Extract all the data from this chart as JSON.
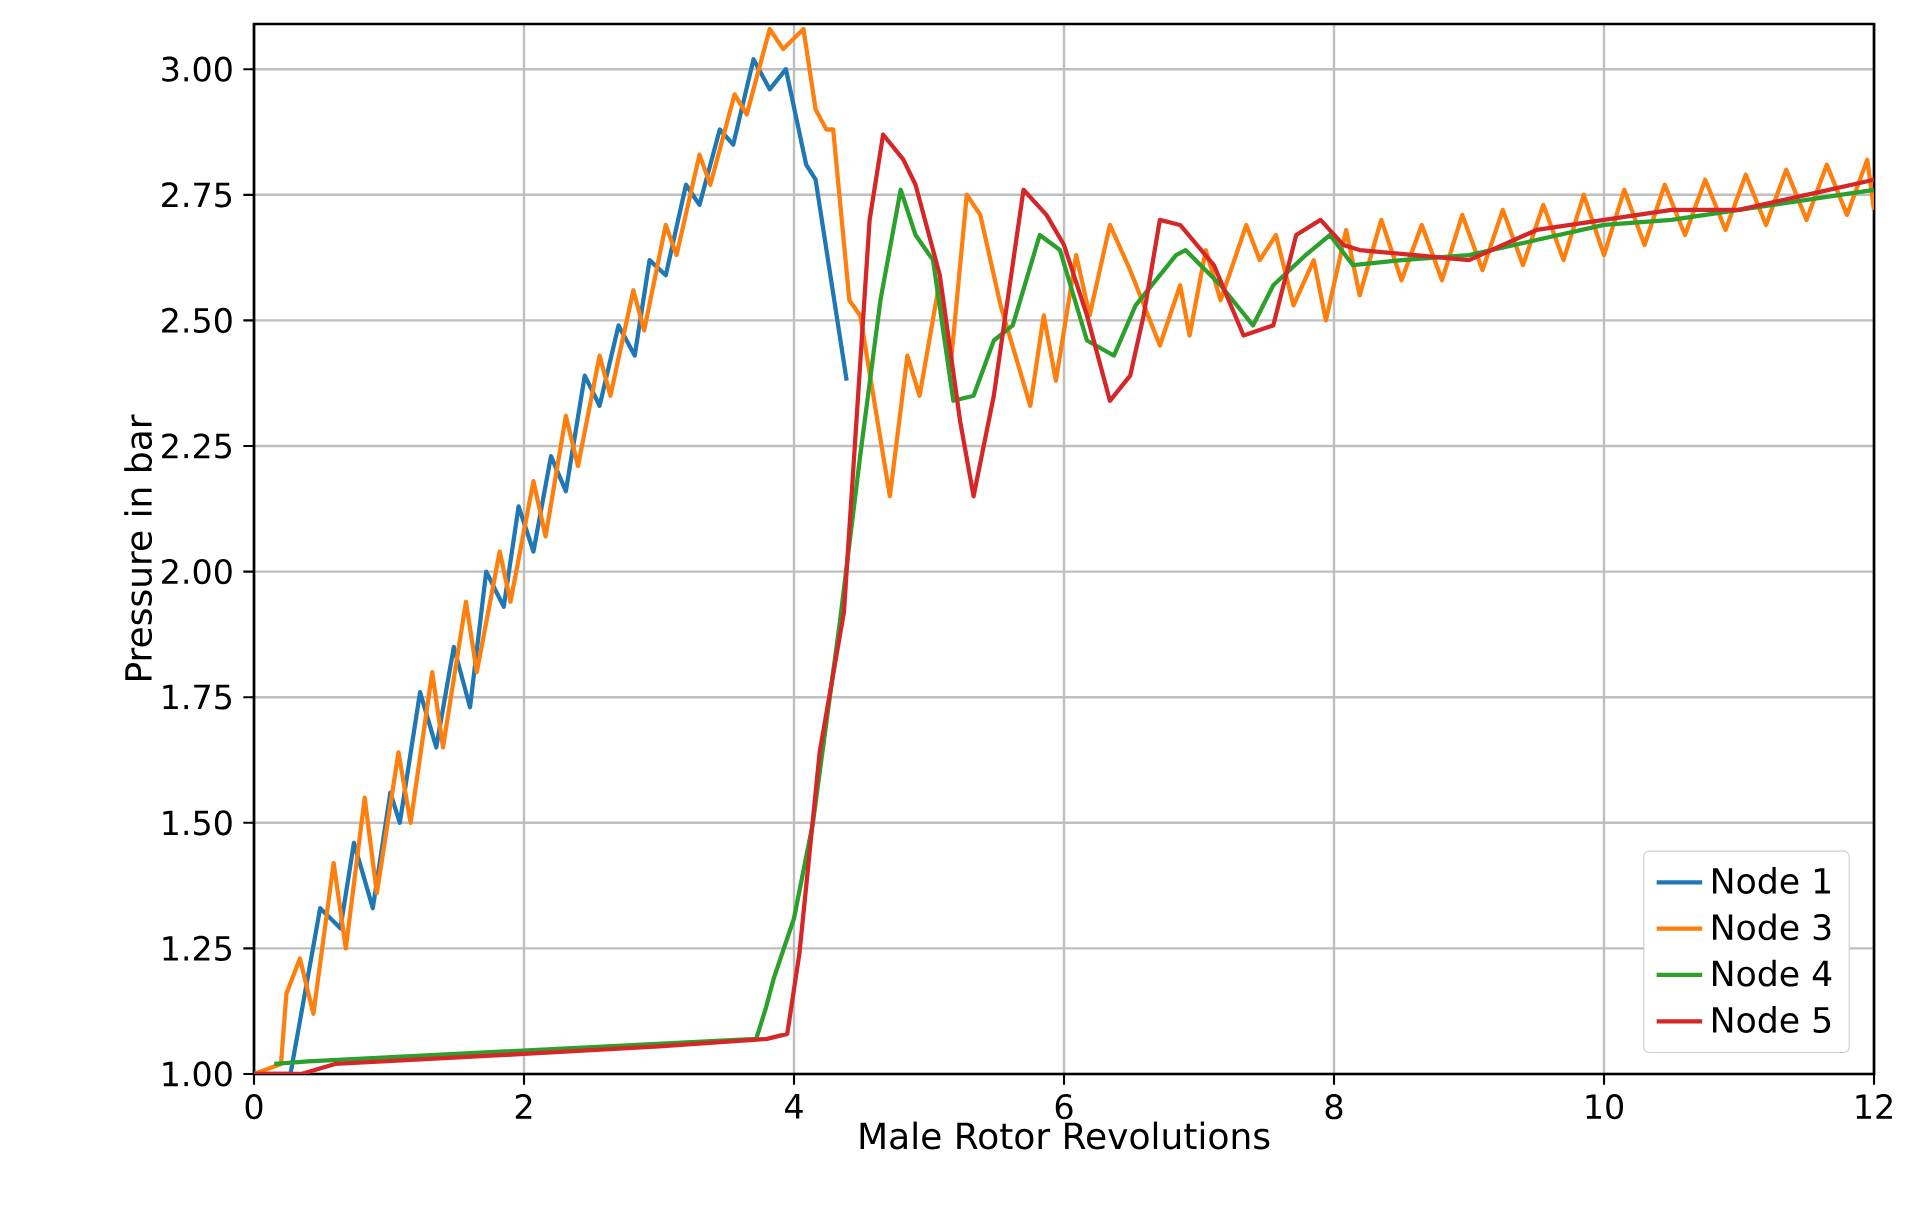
{
  "chart_data": {
    "type": "line",
    "xlabel": "Male Rotor Revolutions",
    "ylabel": "Pressure in bar",
    "xlim": [
      0,
      12
    ],
    "ylim": [
      1.0,
      3.09
    ],
    "xticks": [
      0,
      2,
      4,
      6,
      8,
      10,
      12
    ],
    "yticks": [
      {
        "value": 1.0,
        "label": "1.00"
      },
      {
        "value": 1.25,
        "label": "1.25"
      },
      {
        "value": 1.5,
        "label": "1.50"
      },
      {
        "value": 1.75,
        "label": "1.75"
      },
      {
        "value": 2.0,
        "label": "2.00"
      },
      {
        "value": 2.25,
        "label": "2.25"
      },
      {
        "value": 2.5,
        "label": "2.50"
      },
      {
        "value": 2.75,
        "label": "2.75"
      },
      {
        "value": 3.0,
        "label": "3.00"
      }
    ],
    "grid": true,
    "legend": "bottom right",
    "line_style": "solid",
    "series": [
      {
        "name": "Node 1",
        "color": "#1f77b4",
        "x": [
          0,
          0.27,
          0.49,
          0.64,
          0.74,
          0.88,
          1.01,
          1.08,
          1.23,
          1.35,
          1.48,
          1.6,
          1.72,
          1.85,
          1.96,
          2.07,
          2.2,
          2.31,
          2.45,
          2.56,
          2.7,
          2.82,
          2.93,
          3.05,
          3.2,
          3.3,
          3.45,
          3.55,
          3.7,
          3.82,
          3.94,
          4.09,
          4.16,
          4.39
        ],
        "values": [
          1.0,
          1.0,
          1.33,
          1.29,
          1.46,
          1.33,
          1.56,
          1.5,
          1.76,
          1.65,
          1.85,
          1.73,
          2.0,
          1.93,
          2.13,
          2.04,
          2.23,
          2.16,
          2.39,
          2.33,
          2.49,
          2.43,
          2.62,
          2.59,
          2.77,
          2.73,
          2.88,
          2.85,
          3.02,
          2.96,
          3.0,
          2.81,
          2.78,
          2.38
        ]
      },
      {
        "name": "Node 3",
        "color": "#ff7f0e",
        "x": [
          0,
          0.2,
          0.24,
          0.34,
          0.44,
          0.59,
          0.68,
          0.82,
          0.91,
          1.07,
          1.16,
          1.32,
          1.4,
          1.57,
          1.65,
          1.82,
          1.9,
          2.07,
          2.16,
          2.31,
          2.4,
          2.56,
          2.64,
          2.81,
          2.89,
          3.05,
          3.13,
          3.3,
          3.38,
          3.56,
          3.65,
          3.82,
          3.92,
          4.07,
          4.16,
          4.24,
          4.29,
          4.41,
          4.49,
          4.71,
          4.84,
          4.93,
          5.08,
          5.16,
          5.28,
          5.38,
          5.53,
          5.75,
          5.85,
          5.94,
          6.09,
          6.19,
          6.34,
          6.49,
          6.71,
          6.86,
          6.93,
          7.05,
          7.16,
          7.35,
          7.45,
          7.57,
          7.7,
          7.85,
          7.94,
          8.09,
          8.19,
          8.35,
          8.5,
          8.65,
          8.8,
          8.95,
          9.1,
          9.25,
          9.4,
          9.55,
          9.7,
          9.85,
          10.0,
          10.15,
          10.3,
          10.45,
          10.6,
          10.75,
          10.9,
          11.05,
          11.2,
          11.35,
          11.5,
          11.65,
          11.8,
          11.95,
          12.0
        ],
        "values": [
          1.0,
          1.02,
          1.16,
          1.23,
          1.12,
          1.42,
          1.25,
          1.55,
          1.36,
          1.64,
          1.5,
          1.8,
          1.65,
          1.94,
          1.8,
          2.04,
          1.94,
          2.18,
          2.07,
          2.31,
          2.21,
          2.43,
          2.35,
          2.56,
          2.48,
          2.69,
          2.63,
          2.83,
          2.77,
          2.95,
          2.91,
          3.08,
          3.04,
          3.08,
          2.92,
          2.88,
          2.88,
          2.54,
          2.51,
          2.15,
          2.43,
          2.35,
          2.58,
          2.41,
          2.75,
          2.71,
          2.53,
          2.33,
          2.51,
          2.38,
          2.63,
          2.51,
          2.69,
          2.6,
          2.45,
          2.57,
          2.47,
          2.64,
          2.54,
          2.69,
          2.62,
          2.67,
          2.53,
          2.62,
          2.5,
          2.68,
          2.55,
          2.7,
          2.58,
          2.69,
          2.58,
          2.71,
          2.6,
          2.72,
          2.61,
          2.73,
          2.62,
          2.75,
          2.63,
          2.76,
          2.65,
          2.77,
          2.67,
          2.78,
          2.68,
          2.79,
          2.69,
          2.8,
          2.7,
          2.81,
          2.71,
          2.82,
          2.72
        ]
      },
      {
        "name": "Node 4",
        "color": "#2ca02c",
        "x": [
          0.15,
          0.4,
          3.72,
          3.79,
          3.85,
          4.0,
          4.14,
          4.34,
          4.49,
          4.64,
          4.79,
          4.9,
          5.03,
          5.18,
          5.33,
          5.48,
          5.62,
          5.82,
          5.97,
          6.17,
          6.37,
          6.53,
          6.83,
          6.9,
          7.16,
          7.4,
          7.55,
          7.79,
          7.97,
          8.14,
          8.5,
          9.0,
          9.5,
          10.0,
          10.5,
          11.0,
          11.5,
          12.0
        ],
        "values": [
          1.02,
          1.025,
          1.07,
          1.13,
          1.19,
          1.31,
          1.5,
          1.9,
          2.23,
          2.54,
          2.76,
          2.67,
          2.62,
          2.34,
          2.35,
          2.46,
          2.49,
          2.67,
          2.64,
          2.46,
          2.43,
          2.53,
          2.63,
          2.64,
          2.57,
          2.49,
          2.57,
          2.63,
          2.67,
          2.61,
          2.62,
          2.63,
          2.66,
          2.69,
          2.7,
          2.72,
          2.74,
          2.76
        ]
      },
      {
        "name": "Node 5",
        "color": "#d62728",
        "x": [
          0,
          0.35,
          0.6,
          2.0,
          3.0,
          3.8,
          3.95,
          4.04,
          4.19,
          4.37,
          4.56,
          4.66,
          4.81,
          4.9,
          5.08,
          5.23,
          5.33,
          5.48,
          5.7,
          5.87,
          6.0,
          6.17,
          6.34,
          6.49,
          6.59,
          6.71,
          6.86,
          7.11,
          7.33,
          7.55,
          7.72,
          7.9,
          8.07,
          8.19,
          8.6,
          9.0,
          9.5,
          10.0,
          10.5,
          11.0,
          11.5,
          12.0
        ],
        "values": [
          1.0,
          1.0,
          1.02,
          1.04,
          1.055,
          1.07,
          1.08,
          1.24,
          1.64,
          1.92,
          2.7,
          2.87,
          2.82,
          2.77,
          2.59,
          2.3,
          2.15,
          2.35,
          2.76,
          2.71,
          2.65,
          2.51,
          2.34,
          2.39,
          2.51,
          2.7,
          2.69,
          2.61,
          2.47,
          2.49,
          2.67,
          2.7,
          2.65,
          2.64,
          2.63,
          2.62,
          2.68,
          2.7,
          2.72,
          2.72,
          2.75,
          2.78
        ]
      }
    ]
  }
}
